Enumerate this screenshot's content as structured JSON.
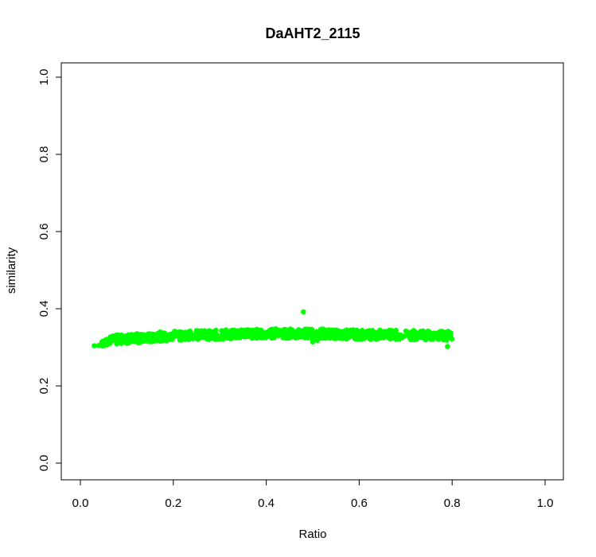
{
  "chart_data": {
    "type": "scatter",
    "title": "DaAHT2_2115",
    "xlabel": "Ratio",
    "ylabel": "similarity",
    "xlim": [
      0.0,
      1.0
    ],
    "ylim": [
      0.0,
      1.0
    ],
    "xticks": [
      "0.0",
      "0.2",
      "0.4",
      "0.6",
      "0.8",
      "1.0"
    ],
    "yticks": [
      "0.0",
      "0.2",
      "0.4",
      "0.6",
      "0.8",
      "1.0"
    ],
    "grid": false,
    "point_color": "#00ff00",
    "band": {
      "x_start": 0.03,
      "x_end": 0.8,
      "y_points": [
        [
          0.03,
          0.31
        ],
        [
          0.06,
          0.318
        ],
        [
          0.1,
          0.322
        ],
        [
          0.15,
          0.326
        ],
        [
          0.2,
          0.33
        ],
        [
          0.3,
          0.333
        ],
        [
          0.4,
          0.336
        ],
        [
          0.5,
          0.336
        ],
        [
          0.6,
          0.333
        ],
        [
          0.7,
          0.332
        ],
        [
          0.8,
          0.33
        ]
      ],
      "spread": 0.012
    },
    "outliers": [
      {
        "x": 0.48,
        "y": 0.392
      },
      {
        "x": 0.03,
        "y": 0.304
      },
      {
        "x": 0.04,
        "y": 0.305
      },
      {
        "x": 0.79,
        "y": 0.302
      },
      {
        "x": 0.5,
        "y": 0.314
      },
      {
        "x": 0.51,
        "y": 0.318
      }
    ]
  }
}
